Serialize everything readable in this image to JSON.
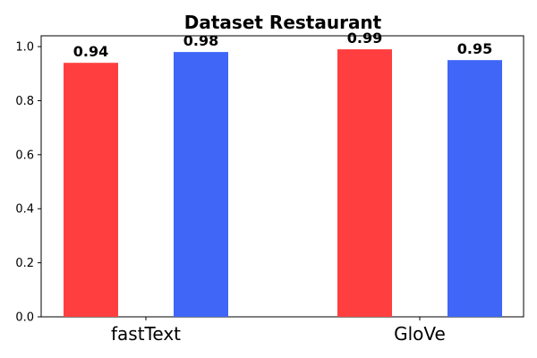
{
  "chart_data": {
    "type": "bar",
    "title": "Dataset Restaurant",
    "xlabel": "",
    "ylabel": "",
    "categories": [
      "fastText",
      "GloVe"
    ],
    "series": [
      {
        "color": "#ff3f3f",
        "values": [
          0.94,
          0.99
        ]
      },
      {
        "color": "#3f66f7",
        "values": [
          0.98,
          0.95
        ]
      }
    ],
    "data_labels": [
      [
        "0.94",
        "0.99"
      ],
      [
        "0.98",
        "0.95"
      ]
    ],
    "ylim": [
      0,
      1.04
    ],
    "yticks": [
      0.0,
      0.2,
      0.4,
      0.6,
      0.8,
      1.0
    ],
    "ytick_labels": [
      "0.0",
      "0.2",
      "0.4",
      "0.6",
      "0.8",
      "1.0"
    ],
    "grid": false,
    "legend": "none"
  }
}
